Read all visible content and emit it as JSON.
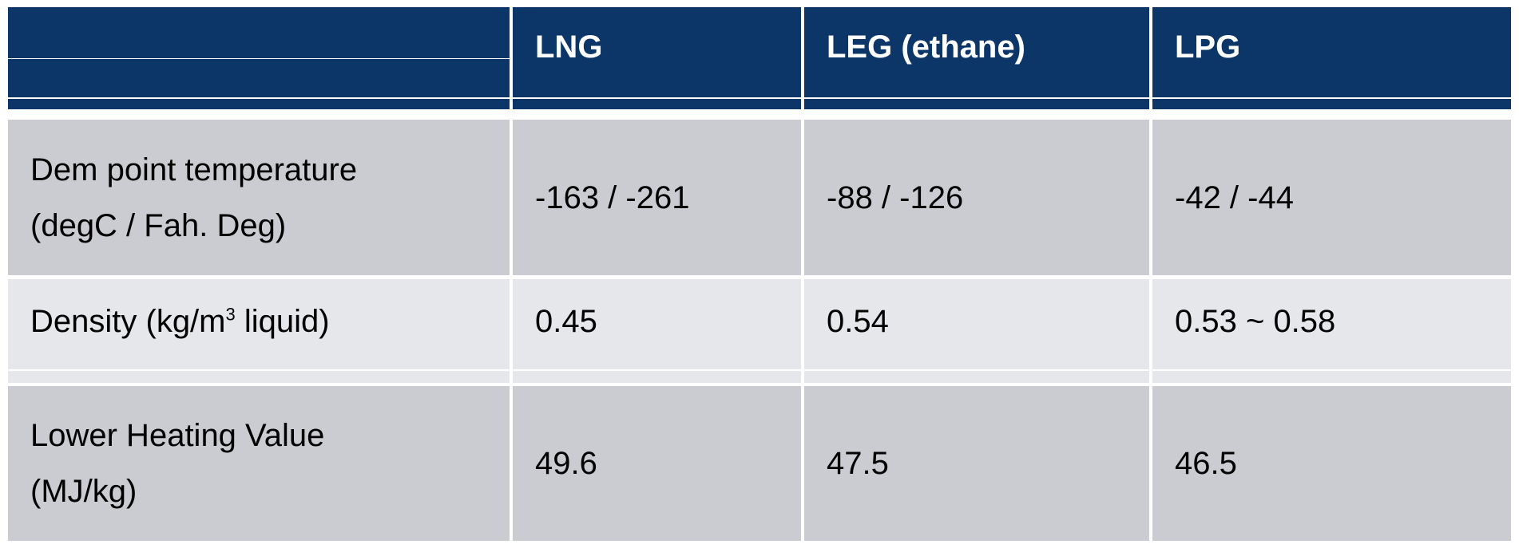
{
  "table": {
    "header": {
      "corner": "",
      "columns": [
        "LNG",
        "LEG (ethane)",
        "LPG"
      ]
    },
    "rows": [
      {
        "label_line1": "Dem point temperature",
        "label_line2": "(degC / Fah. Deg)",
        "values": [
          "-163 / -261",
          "-88 / -126",
          "-42 / -44"
        ]
      },
      {
        "label_prefix": "Density (kg/m",
        "label_sup": "3",
        "label_suffix": " liquid)",
        "values": [
          "0.45",
          "0.54",
          "0.53 ~ 0.58"
        ]
      },
      {
        "label_line1": "Lower Heating Value",
        "label_line2": "(MJ/kg)",
        "values": [
          "49.6",
          "47.5",
          "46.5"
        ]
      }
    ],
    "colors": {
      "header_bg": "#0d3668",
      "row_dark_bg": "#cbccd1",
      "row_light_bg": "#e6e7eb",
      "grid": "#ffffff"
    }
  }
}
